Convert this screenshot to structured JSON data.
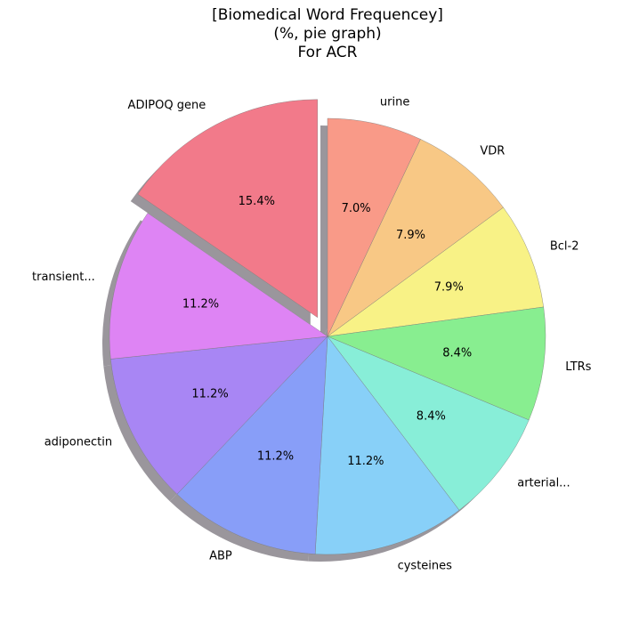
{
  "chart_data": {
    "type": "pie",
    "title_lines": [
      "[Biomedical Word Frequencey]",
      "(%, pie graph)",
      "For ACR"
    ],
    "categories": [
      "urine",
      "VDR",
      "Bcl-2",
      "LTRs",
      "arterial...",
      "cysteines",
      "ABP",
      "adiponectin",
      "transient...",
      "ADIPOQ gene"
    ],
    "values": [
      7.0,
      7.9,
      7.9,
      8.4,
      8.4,
      11.2,
      11.2,
      11.2,
      11.2,
      15.4
    ],
    "value_labels": [
      "7.0%",
      "7.9%",
      "7.9%",
      "8.4%",
      "8.4%",
      "11.2%",
      "11.2%",
      "11.2%",
      "11.2%",
      "15.4%"
    ],
    "colors": [
      "#f99a88",
      "#f8c885",
      "#f8f286",
      "#88ee90",
      "#88eed8",
      "#88d0f8",
      "#889ef8",
      "#a886f4",
      "#de84f4",
      "#f27a8a"
    ],
    "exploded": [
      "ADIPOQ gene"
    ],
    "shadow": true,
    "start_angle_deg": 90,
    "direction": "clockwise"
  }
}
